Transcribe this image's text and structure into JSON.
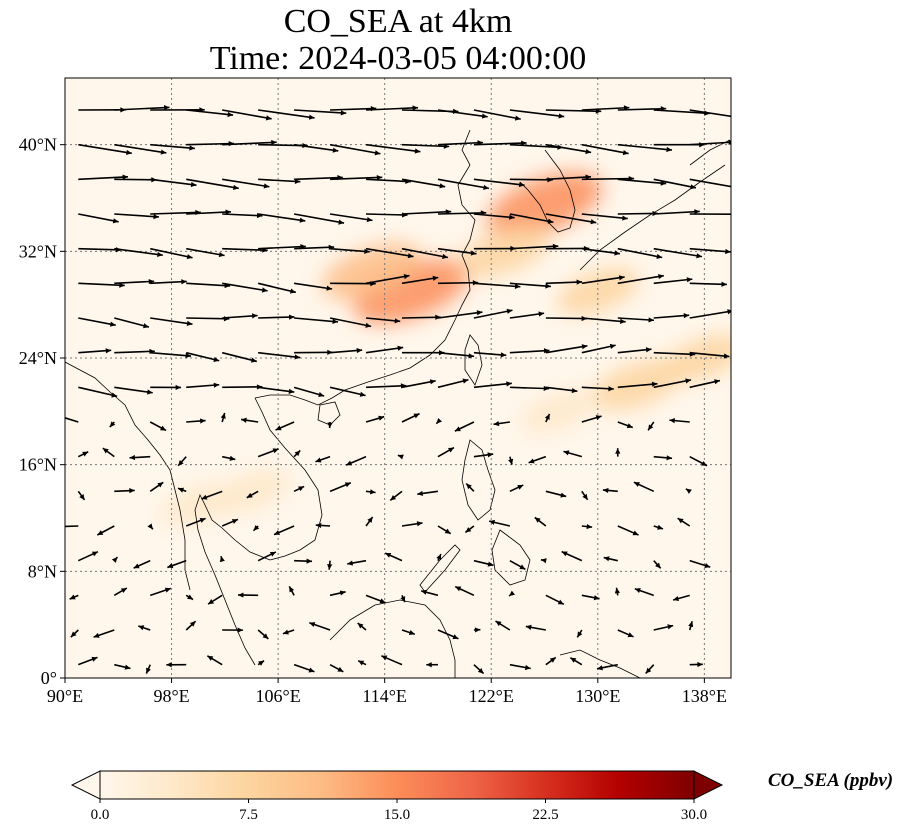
{
  "chart_data": {
    "type": "heatmap",
    "title_lines": [
      "CO_SEA at 4km",
      "Time: 2024-03-05 04:00:00"
    ],
    "x_ticks": [
      "90°E",
      "98°E",
      "106°E",
      "114°E",
      "122°E",
      "130°E",
      "138°E"
    ],
    "y_ticks": [
      "0°",
      "8°N",
      "16°N",
      "24°N",
      "32°N",
      "40°N"
    ],
    "lon_range": [
      90,
      140
    ],
    "lat_range": [
      0,
      45
    ],
    "lon_tick_values": [
      90,
      98,
      106,
      114,
      122,
      130,
      138
    ],
    "lat_tick_values": [
      0,
      8,
      16,
      24,
      32,
      40
    ],
    "colorbar": {
      "label": "CO_SEA (ppbv)",
      "ticks": [
        "0.0",
        "7.5",
        "15.0",
        "22.5",
        "30.0"
      ],
      "tick_values": [
        0,
        7.5,
        15,
        22.5,
        30
      ],
      "range": [
        0,
        30
      ],
      "extend": "both",
      "colormap": "OrRd",
      "colors": [
        "#fff7ec",
        "#fee8c8",
        "#fdd49e",
        "#fdbb84",
        "#fc8d59",
        "#ef6548",
        "#d7301f",
        "#b30000",
        "#7f0000"
      ]
    },
    "plumes": [
      {
        "lon": 126,
        "lat": 35.5,
        "value": 14
      },
      {
        "lon": 116,
        "lat": 29,
        "value": 14
      },
      {
        "lon": 113,
        "lat": 30.5,
        "value": 10
      },
      {
        "lon": 123,
        "lat": 32,
        "value": 8
      },
      {
        "lon": 130,
        "lat": 29,
        "value": 6
      },
      {
        "lon": 133,
        "lat": 22,
        "value": 8
      },
      {
        "lon": 138,
        "lat": 24,
        "value": 6
      },
      {
        "lon": 127,
        "lat": 20,
        "value": 4
      },
      {
        "lon": 104,
        "lat": 14,
        "value": 5
      },
      {
        "lon": 100,
        "lat": 13,
        "value": 4
      }
    ],
    "wind_field": "westerlies in the north, weaker and variable winds in the south",
    "grid": true,
    "grid_style": "dotted"
  }
}
